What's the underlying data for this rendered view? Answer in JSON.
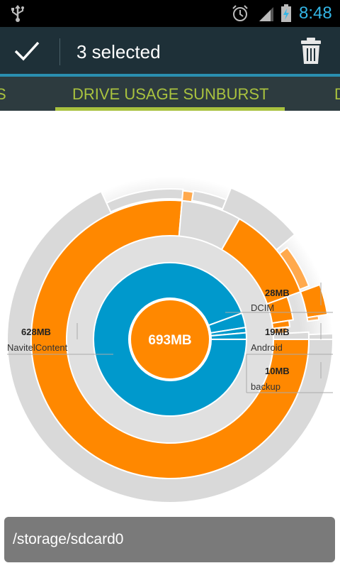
{
  "status_bar": {
    "time": "8:48",
    "icons": [
      "usb-icon",
      "alarm-icon",
      "signal-icon",
      "battery-charging-icon"
    ],
    "clock_color": "#33b5e5"
  },
  "action_bar": {
    "done_icon": "check-icon",
    "title": "3 selected",
    "delete_icon": "trash-icon"
  },
  "tabs": {
    "left_partial": "S",
    "active": "DRIVE USAGE SUNBURST",
    "right_partial": "D",
    "accent_color": "#a9c23f"
  },
  "chart_data": {
    "type": "sunburst",
    "center": {
      "label": "693MB"
    },
    "colors": {
      "level1": "#0099cc",
      "level2": "#ff8800",
      "level3": "#ffa94d",
      "free": "#d9d9d9",
      "center": "#ff8800"
    },
    "segments": [
      {
        "name": "NavitelContent",
        "size": "628MB"
      },
      {
        "name": "DCIM",
        "size": "28MB"
      },
      {
        "name": "Android",
        "size": "19MB"
      },
      {
        "name": "backup",
        "size": "10MB"
      }
    ]
  },
  "path_bar": {
    "path": "/storage/sdcard0"
  }
}
